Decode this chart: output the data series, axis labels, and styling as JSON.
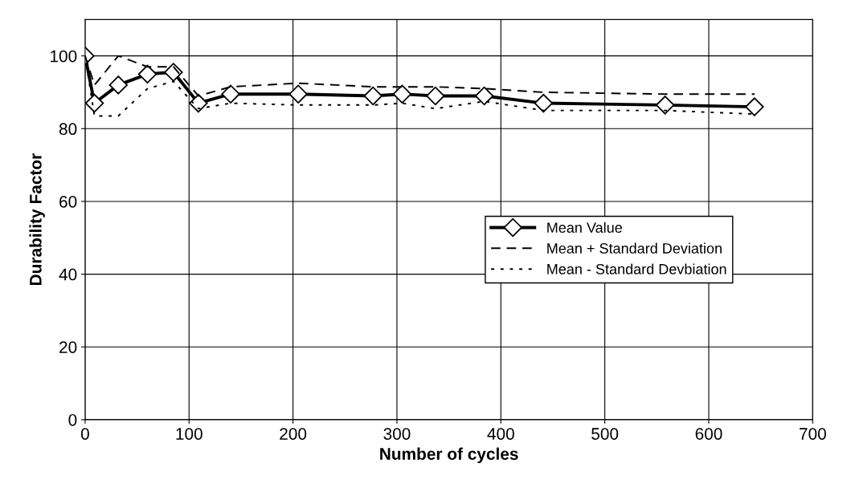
{
  "chart_data": {
    "type": "line",
    "xlabel": "Number of cycles",
    "ylabel": "Durability Factor",
    "xlim": [
      0,
      700
    ],
    "xticks": [
      0,
      100,
      200,
      300,
      400,
      500,
      600,
      700
    ],
    "ylim": [
      0,
      110
    ],
    "yticks": [
      0,
      20,
      40,
      60,
      80,
      100
    ],
    "grid": true,
    "legend": "center right",
    "series": [
      {
        "name": "Mean Value",
        "color": "#000000",
        "marker": "diamond",
        "line_style": "solid",
        "x": [
          0,
          9,
          32,
          60,
          85,
          109,
          140,
          205,
          277,
          305,
          337,
          384,
          441,
          558,
          644
        ],
        "values": [
          100,
          87,
          92,
          95,
          95.5,
          87,
          89.5,
          89.5,
          89,
          89.5,
          89,
          89,
          87,
          86.5,
          86
        ]
      },
      {
        "name": "Mean + Standard Deviation",
        "color": "#000000",
        "marker": "none",
        "line_style": "dashed",
        "x": [
          0,
          9,
          32,
          60,
          85,
          109,
          140,
          205,
          277,
          305,
          337,
          384,
          441,
          558,
          644
        ],
        "values": [
          100,
          92,
          100,
          97,
          97,
          89,
          91.5,
          92.5,
          91.5,
          91.5,
          91.5,
          91,
          90,
          89.5,
          89.5
        ]
      },
      {
        "name": "Mean - Standard Devbiation",
        "color": "#000000",
        "marker": "none",
        "line_style": "dotted",
        "x": [
          0,
          9,
          32,
          60,
          85,
          109,
          140,
          205,
          277,
          305,
          337,
          384,
          441,
          558,
          644
        ],
        "values": [
          100,
          83.5,
          83.5,
          91,
          93,
          85.5,
          87,
          86.5,
          86.5,
          87,
          85.5,
          87.5,
          85,
          85,
          84
        ]
      }
    ]
  }
}
